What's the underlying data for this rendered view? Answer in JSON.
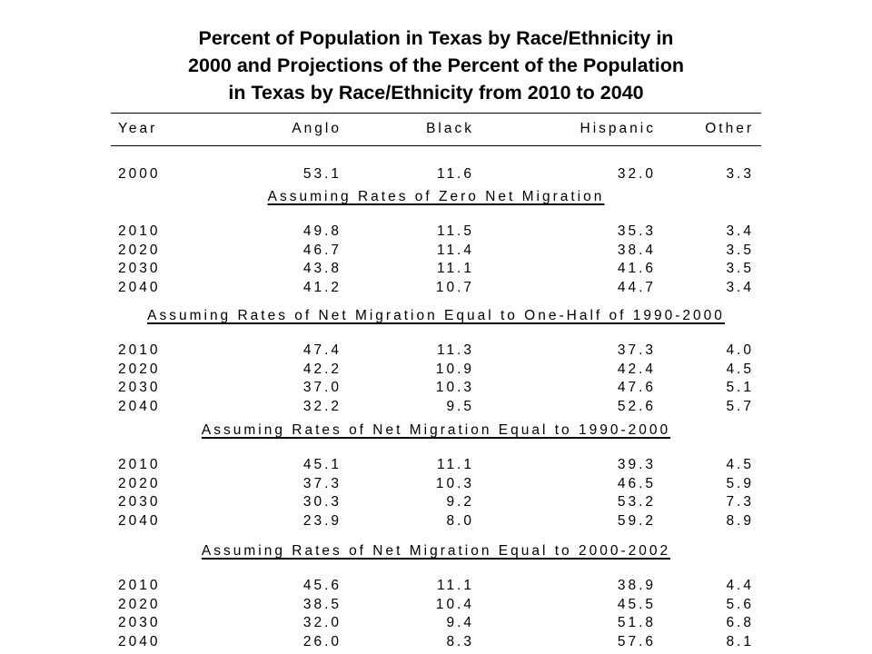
{
  "title_lines": [
    "Percent of Population in Texas by Race/Ethnicity in",
    "2000 and Projections of the Percent of the Population",
    "in Texas by Race/Ethnicity from 2010 to 2040"
  ],
  "headers": {
    "year": "Year",
    "anglo": "Anglo",
    "black": "Black",
    "hispanic": "Hispanic",
    "other": "Other"
  },
  "base_row": {
    "year": "2000",
    "anglo": "53.1",
    "black": "11.6",
    "hispanic": "32.0",
    "other": "3.3"
  },
  "sections": [
    {
      "title": "Assuming Rates of Zero Net Migration",
      "rows": [
        {
          "year": "2010",
          "anglo": "49.8",
          "black": "11.5",
          "hispanic": "35.3",
          "other": "3.4"
        },
        {
          "year": "2020",
          "anglo": "46.7",
          "black": "11.4",
          "hispanic": "38.4",
          "other": "3.5"
        },
        {
          "year": "2030",
          "anglo": "43.8",
          "black": "11.1",
          "hispanic": "41.6",
          "other": "3.5"
        },
        {
          "year": "2040",
          "anglo": "41.2",
          "black": "10.7",
          "hispanic": "44.7",
          "other": "3.4"
        }
      ]
    },
    {
      "title": "Assuming Rates of Net Migration Equal to One-Half of 1990-2000",
      "rows": [
        {
          "year": "2010",
          "anglo": "47.4",
          "black": "11.3",
          "hispanic": "37.3",
          "other": "4.0"
        },
        {
          "year": "2020",
          "anglo": "42.2",
          "black": "10.9",
          "hispanic": "42.4",
          "other": "4.5"
        },
        {
          "year": "2030",
          "anglo": "37.0",
          "black": "10.3",
          "hispanic": "47.6",
          "other": "5.1"
        },
        {
          "year": "2040",
          "anglo": "32.2",
          "black": "9.5",
          "hispanic": "52.6",
          "other": "5.7"
        }
      ]
    },
    {
      "title": "Assuming Rates of Net Migration Equal to 1990-2000",
      "rows": [
        {
          "year": "2010",
          "anglo": "45.1",
          "black": "11.1",
          "hispanic": "39.3",
          "other": "4.5"
        },
        {
          "year": "2020",
          "anglo": "37.3",
          "black": "10.3",
          "hispanic": "46.5",
          "other": "5.9"
        },
        {
          "year": "2030",
          "anglo": "30.3",
          "black": "9.2",
          "hispanic": "53.2",
          "other": "7.3"
        },
        {
          "year": "2040",
          "anglo": "23.9",
          "black": "8.0",
          "hispanic": "59.2",
          "other": "8.9"
        }
      ]
    },
    {
      "title": "Assuming Rates of Net Migration Equal to 2000-2002",
      "rows": [
        {
          "year": "2010",
          "anglo": "45.6",
          "black": "11.1",
          "hispanic": "38.9",
          "other": "4.4"
        },
        {
          "year": "2020",
          "anglo": "38.5",
          "black": "10.4",
          "hispanic": "45.5",
          "other": "5.6"
        },
        {
          "year": "2030",
          "anglo": "32.0",
          "black": "9.4",
          "hispanic": "51.8",
          "other": "6.8"
        },
        {
          "year": "2040",
          "anglo": "26.0",
          "black": "8.3",
          "hispanic": "57.6",
          "other": "8.1"
        }
      ]
    }
  ]
}
